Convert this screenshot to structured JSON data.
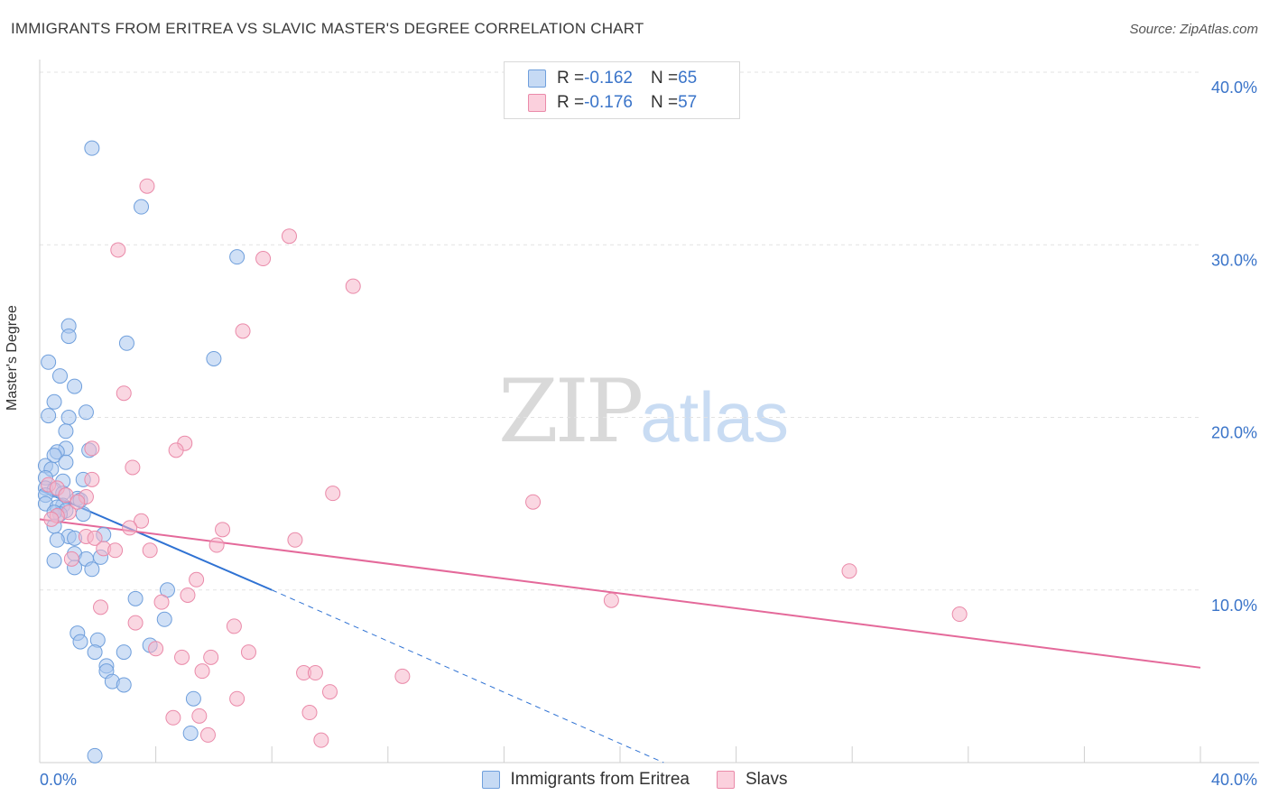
{
  "header": {
    "title": "IMMIGRANTS FROM ERITREA VS SLAVIC MASTER'S DEGREE CORRELATION CHART",
    "source": "Source: ZipAtlas.com"
  },
  "watermark": {
    "zip": "ZIP",
    "atlas": "atlas"
  },
  "legend_top": [
    {
      "r_label": "R = ",
      "r_value": "-0.162",
      "n_label": "N = ",
      "n_value": "65",
      "color": "#a9c7ee"
    },
    {
      "r_label": "R = ",
      "r_value": "-0.176",
      "n_label": "N = ",
      "n_value": "57",
      "color": "#f6b7cb"
    }
  ],
  "legend_bottom": [
    {
      "label": "Immigrants from Eritrea",
      "color": "#a9c7ee"
    },
    {
      "label": "Slavs",
      "color": "#f6b7cb"
    }
  ],
  "colors": {
    "blue_fill": "#a9c7ee",
    "blue_stroke": "#6f9fdc",
    "blue_line": "#2f72d3",
    "pink_fill": "#f6b7cb",
    "pink_stroke": "#ea8aa9",
    "pink_line": "#e4699a",
    "axis_label": "#3a74c9",
    "grid": "#e3e3e3"
  },
  "chart_data": {
    "type": "scatter",
    "title": "IMMIGRANTS FROM ERITREA VS SLAVIC MASTER'S DEGREE CORRELATION CHART",
    "xlabel": "",
    "ylabel": "Master's Degree",
    "xlim": [
      0,
      40
    ],
    "ylim": [
      0,
      40
    ],
    "x_tick_labels": [
      "0.0%",
      "40.0%"
    ],
    "y_tick_labels": [
      "10.0%",
      "20.0%",
      "30.0%",
      "40.0%"
    ],
    "y_ticks": [
      10,
      20,
      30,
      40
    ],
    "grid": true,
    "legend_position": "top-center",
    "series": [
      {
        "name": "Immigrants from Eritrea",
        "r": -0.162,
        "n": 65,
        "trend": {
          "x0": 0,
          "y0": 15.8,
          "x1": 8.0,
          "y1": 10.0,
          "dash_to_x": 21.5,
          "dash_to_y": 0
        },
        "points": [
          [
            1.8,
            35.6
          ],
          [
            3.5,
            32.2
          ],
          [
            6.8,
            29.3
          ],
          [
            1.0,
            25.3
          ],
          [
            1.0,
            24.7
          ],
          [
            3.0,
            24.3
          ],
          [
            6.0,
            23.4
          ],
          [
            0.3,
            23.2
          ],
          [
            0.7,
            22.4
          ],
          [
            1.2,
            21.8
          ],
          [
            0.5,
            20.9
          ],
          [
            1.6,
            20.3
          ],
          [
            0.3,
            20.1
          ],
          [
            1.0,
            20.0
          ],
          [
            0.9,
            19.2
          ],
          [
            0.9,
            18.2
          ],
          [
            1.7,
            18.1
          ],
          [
            0.6,
            18.0
          ],
          [
            0.5,
            17.8
          ],
          [
            0.9,
            17.4
          ],
          [
            0.2,
            17.2
          ],
          [
            0.4,
            17.0
          ],
          [
            0.2,
            16.5
          ],
          [
            1.5,
            16.4
          ],
          [
            0.8,
            16.3
          ],
          [
            0.2,
            15.9
          ],
          [
            0.5,
            15.8
          ],
          [
            0.8,
            15.6
          ],
          [
            0.2,
            15.5
          ],
          [
            1.3,
            15.3
          ],
          [
            1.4,
            15.2
          ],
          [
            0.2,
            15.0
          ],
          [
            0.8,
            14.9
          ],
          [
            0.6,
            14.8
          ],
          [
            0.9,
            14.6
          ],
          [
            0.7,
            14.4
          ],
          [
            0.5,
            13.7
          ],
          [
            1.0,
            13.1
          ],
          [
            2.2,
            13.2
          ],
          [
            1.2,
            13.0
          ],
          [
            0.6,
            12.9
          ],
          [
            1.2,
            12.1
          ],
          [
            2.1,
            11.9
          ],
          [
            1.6,
            11.8
          ],
          [
            0.5,
            11.7
          ],
          [
            1.2,
            11.3
          ],
          [
            1.8,
            11.2
          ],
          [
            4.4,
            10.0
          ],
          [
            3.3,
            9.5
          ],
          [
            4.3,
            8.3
          ],
          [
            1.3,
            7.5
          ],
          [
            2.0,
            7.1
          ],
          [
            1.4,
            7.0
          ],
          [
            3.8,
            6.8
          ],
          [
            1.9,
            6.4
          ],
          [
            2.9,
            6.4
          ],
          [
            2.3,
            5.6
          ],
          [
            2.3,
            5.3
          ],
          [
            2.5,
            4.7
          ],
          [
            2.9,
            4.5
          ],
          [
            5.3,
            3.7
          ],
          [
            5.2,
            1.7
          ],
          [
            1.9,
            0.4
          ],
          [
            0.5,
            14.5
          ],
          [
            1.5,
            14.4
          ]
        ]
      },
      {
        "name": "Slavs",
        "r": -0.176,
        "n": 57,
        "trend": {
          "x0": 0,
          "y0": 14.1,
          "x1": 40,
          "y1": 5.5
        },
        "points": [
          [
            3.7,
            33.4
          ],
          [
            8.6,
            30.5
          ],
          [
            2.7,
            29.7
          ],
          [
            7.7,
            29.2
          ],
          [
            10.8,
            27.6
          ],
          [
            7.0,
            25.0
          ],
          [
            2.9,
            21.4
          ],
          [
            5.0,
            18.5
          ],
          [
            4.7,
            18.1
          ],
          [
            3.2,
            17.1
          ],
          [
            1.8,
            18.2
          ],
          [
            10.1,
            15.6
          ],
          [
            17.0,
            15.1
          ],
          [
            0.3,
            16.1
          ],
          [
            0.6,
            15.9
          ],
          [
            1.8,
            16.4
          ],
          [
            1.6,
            15.4
          ],
          [
            0.9,
            15.5
          ],
          [
            1.0,
            14.5
          ],
          [
            1.3,
            15.1
          ],
          [
            0.6,
            14.3
          ],
          [
            0.4,
            14.1
          ],
          [
            3.5,
            14.0
          ],
          [
            3.1,
            13.6
          ],
          [
            6.3,
            13.5
          ],
          [
            8.8,
            12.9
          ],
          [
            1.6,
            13.1
          ],
          [
            1.9,
            13.0
          ],
          [
            6.1,
            12.6
          ],
          [
            2.2,
            12.4
          ],
          [
            3.8,
            12.3
          ],
          [
            2.6,
            12.3
          ],
          [
            1.1,
            11.8
          ],
          [
            27.9,
            11.1
          ],
          [
            5.4,
            10.6
          ],
          [
            5.1,
            9.7
          ],
          [
            19.7,
            9.4
          ],
          [
            4.2,
            9.3
          ],
          [
            2.1,
            9.0
          ],
          [
            31.7,
            8.6
          ],
          [
            3.3,
            8.1
          ],
          [
            6.7,
            7.9
          ],
          [
            4.0,
            6.6
          ],
          [
            7.2,
            6.4
          ],
          [
            4.9,
            6.1
          ],
          [
            5.9,
            6.1
          ],
          [
            5.6,
            5.3
          ],
          [
            9.1,
            5.2
          ],
          [
            9.5,
            5.2
          ],
          [
            12.5,
            5.0
          ],
          [
            10.0,
            4.1
          ],
          [
            6.8,
            3.7
          ],
          [
            9.3,
            2.9
          ],
          [
            4.6,
            2.6
          ],
          [
            5.5,
            2.7
          ],
          [
            5.8,
            1.6
          ],
          [
            9.7,
            1.3
          ]
        ]
      }
    ]
  }
}
